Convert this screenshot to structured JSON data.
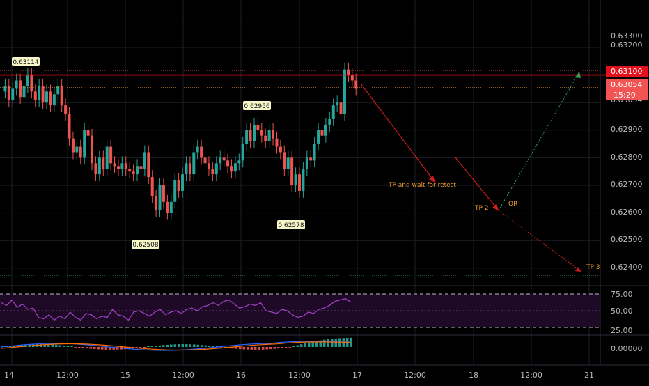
{
  "price_axis": {
    "labels": [
      "0.63300",
      "0.63200",
      "0.63054",
      "0.62900",
      "0.62800",
      "0.62700",
      "0.62600",
      "0.62500",
      "0.62400"
    ],
    "current_price": "0.63054",
    "countdown": "15:20",
    "resistance": "0.63100"
  },
  "time_axis": {
    "labels": [
      "14",
      "12:00",
      "15",
      "12:00",
      "16",
      "12:00",
      "17",
      "12:00",
      "18",
      "12:00",
      "21"
    ]
  },
  "callouts": {
    "high_1": "0.63114",
    "high_2": "0.62956",
    "low_1": "0.62508",
    "low_2": "0.62578"
  },
  "annotations": {
    "tp1": "TP and wait for retest",
    "tp2": "TP 2",
    "or": "OR",
    "tp3": "TP 3"
  },
  "rsi_axis": {
    "labels": [
      "75.00",
      "50.00",
      "25.00"
    ]
  },
  "macd_axis": {
    "labels": [
      "0.00000"
    ]
  },
  "colors": {
    "up": "#26a69a",
    "down": "#ef5350",
    "resistance": "#e3101d",
    "annotation": "#f0a030",
    "rsi": "#9c3fc0",
    "macd": "#2962ff",
    "signal": "#ff6d00"
  },
  "chart_data": {
    "type": "candlestick",
    "y_range": [
      0.6235,
      0.6335
    ],
    "x_labels": [
      "14",
      "12:00",
      "15",
      "12:00",
      "16",
      "12:00",
      "17",
      "12:00",
      "18",
      "12:00",
      "21"
    ],
    "resistance_level": 0.631,
    "support_level": 0.6237,
    "last_price": 0.63054,
    "marked_highs": [
      0.63114,
      0.62956
    ],
    "marked_lows": [
      0.62508,
      0.62578
    ],
    "targets": [
      "TP and wait for retest",
      "TP 2",
      "TP 3"
    ],
    "rsi_levels": [
      75,
      50,
      25
    ]
  }
}
